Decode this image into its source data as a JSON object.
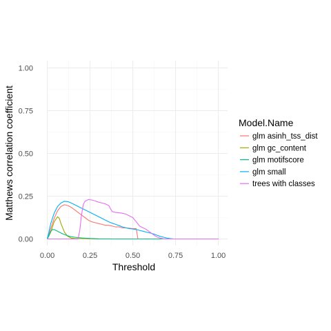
{
  "chart_data": {
    "type": "line",
    "xlabel": "Threshold",
    "ylabel": "Matthews correlation coefficient",
    "xlim": [
      0,
      1
    ],
    "ylim": [
      0,
      1
    ],
    "x_ticks": [
      "0.00",
      "0.25",
      "0.50",
      "0.75",
      "1.00"
    ],
    "y_ticks": [
      "0.00",
      "0.25",
      "0.50",
      "0.75",
      "1.00"
    ],
    "grid": true,
    "legend": {
      "title": "Model.Name",
      "position": "right"
    },
    "series": [
      {
        "name": "glm asinh_tss_dist",
        "color": "#F8766D",
        "points": [
          [
            0,
            0
          ],
          [
            0.02,
            0.06
          ],
          [
            0.04,
            0.12
          ],
          [
            0.06,
            0.165
          ],
          [
            0.08,
            0.19
          ],
          [
            0.1,
            0.2
          ],
          [
            0.12,
            0.195
          ],
          [
            0.14,
            0.185
          ],
          [
            0.16,
            0.17
          ],
          [
            0.18,
            0.155
          ],
          [
            0.2,
            0.14
          ],
          [
            0.22,
            0.125
          ],
          [
            0.24,
            0.11
          ],
          [
            0.26,
            0.1
          ],
          [
            0.28,
            0.095
          ],
          [
            0.3,
            0.09
          ],
          [
            0.32,
            0.085
          ],
          [
            0.34,
            0.08
          ],
          [
            0.36,
            0.08
          ],
          [
            0.38,
            0.075
          ],
          [
            0.4,
            0.07
          ],
          [
            0.42,
            0.07
          ],
          [
            0.44,
            0.065
          ],
          [
            0.46,
            0.065
          ],
          [
            0.48,
            0.063
          ],
          [
            0.5,
            0.06
          ],
          [
            0.52,
            0.06
          ],
          [
            0.53,
            0.0
          ],
          [
            0.6,
            0
          ],
          [
            0.7,
            0
          ],
          [
            0.8,
            0
          ],
          [
            0.9,
            0
          ],
          [
            1.0,
            0
          ]
        ]
      },
      {
        "name": "glm gc_content",
        "color": "#A3A500",
        "points": [
          [
            0,
            0
          ],
          [
            0.02,
            0.04
          ],
          [
            0.04,
            0.1
          ],
          [
            0.06,
            0.13
          ],
          [
            0.07,
            0.12
          ],
          [
            0.08,
            0.09
          ],
          [
            0.1,
            0.04
          ],
          [
            0.12,
            0.015
          ],
          [
            0.14,
            0.005
          ],
          [
            0.16,
            0.003
          ],
          [
            0.2,
            0.002
          ],
          [
            0.3,
            0
          ],
          [
            0.5,
            0
          ],
          [
            0.7,
            0
          ],
          [
            1.0,
            0
          ]
        ]
      },
      {
        "name": "glm motifscore",
        "color": "#00BF7D",
        "points": [
          [
            0,
            0
          ],
          [
            0.01,
            0.02
          ],
          [
            0.02,
            0.045
          ],
          [
            0.03,
            0.055
          ],
          [
            0.04,
            0.055
          ],
          [
            0.05,
            0.05
          ],
          [
            0.07,
            0.04
          ],
          [
            0.09,
            0.03
          ],
          [
            0.11,
            0.022
          ],
          [
            0.13,
            0.015
          ],
          [
            0.16,
            0.01
          ],
          [
            0.2,
            0.006
          ],
          [
            0.25,
            0.003
          ],
          [
            0.3,
            0.001
          ],
          [
            0.4,
            0
          ],
          [
            0.6,
            0
          ],
          [
            0.8,
            0
          ],
          [
            1.0,
            0
          ]
        ]
      },
      {
        "name": "glm small",
        "color": "#00B0F6",
        "points": [
          [
            0,
            0
          ],
          [
            0.02,
            0.09
          ],
          [
            0.04,
            0.15
          ],
          [
            0.06,
            0.19
          ],
          [
            0.08,
            0.21
          ],
          [
            0.1,
            0.22
          ],
          [
            0.12,
            0.218
          ],
          [
            0.14,
            0.21
          ],
          [
            0.16,
            0.2
          ],
          [
            0.18,
            0.19
          ],
          [
            0.2,
            0.18
          ],
          [
            0.22,
            0.17
          ],
          [
            0.24,
            0.16
          ],
          [
            0.26,
            0.15
          ],
          [
            0.28,
            0.14
          ],
          [
            0.3,
            0.13
          ],
          [
            0.32,
            0.12
          ],
          [
            0.34,
            0.11
          ],
          [
            0.36,
            0.1
          ],
          [
            0.38,
            0.092
          ],
          [
            0.4,
            0.085
          ],
          [
            0.42,
            0.078
          ],
          [
            0.44,
            0.07
          ],
          [
            0.46,
            0.065
          ],
          [
            0.48,
            0.06
          ],
          [
            0.5,
            0.058
          ],
          [
            0.52,
            0.055
          ],
          [
            0.54,
            0.05
          ],
          [
            0.56,
            0.045
          ],
          [
            0.58,
            0.04
          ],
          [
            0.6,
            0.035
          ],
          [
            0.62,
            0.03
          ],
          [
            0.64,
            0.022
          ],
          [
            0.66,
            0.015
          ],
          [
            0.68,
            0.01
          ],
          [
            0.7,
            0.005
          ],
          [
            0.72,
            0.002
          ],
          [
            0.74,
            0
          ],
          [
            0.8,
            0
          ],
          [
            0.9,
            0
          ],
          [
            1.0,
            0
          ]
        ]
      },
      {
        "name": "trees with classes",
        "color": "#E76BF3",
        "points": [
          [
            0,
            0
          ],
          [
            0.1,
            0
          ],
          [
            0.18,
            0
          ],
          [
            0.19,
            0.05
          ],
          [
            0.2,
            0.14
          ],
          [
            0.21,
            0.2
          ],
          [
            0.22,
            0.22
          ],
          [
            0.24,
            0.23
          ],
          [
            0.26,
            0.228
          ],
          [
            0.28,
            0.222
          ],
          [
            0.3,
            0.215
          ],
          [
            0.32,
            0.21
          ],
          [
            0.34,
            0.205
          ],
          [
            0.36,
            0.195
          ],
          [
            0.37,
            0.175
          ],
          [
            0.38,
            0.16
          ],
          [
            0.4,
            0.155
          ],
          [
            0.42,
            0.153
          ],
          [
            0.44,
            0.15
          ],
          [
            0.46,
            0.145
          ],
          [
            0.48,
            0.135
          ],
          [
            0.5,
            0.125
          ],
          [
            0.52,
            0.1
          ],
          [
            0.54,
            0.075
          ],
          [
            0.56,
            0.065
          ],
          [
            0.58,
            0.055
          ],
          [
            0.6,
            0.04
          ],
          [
            0.62,
            0.025
          ],
          [
            0.64,
            0.012
          ],
          [
            0.66,
            0.005
          ],
          [
            0.68,
            0.001
          ],
          [
            0.7,
            0
          ],
          [
            0.8,
            0
          ],
          [
            0.9,
            0
          ],
          [
            1.0,
            0
          ]
        ]
      }
    ]
  }
}
